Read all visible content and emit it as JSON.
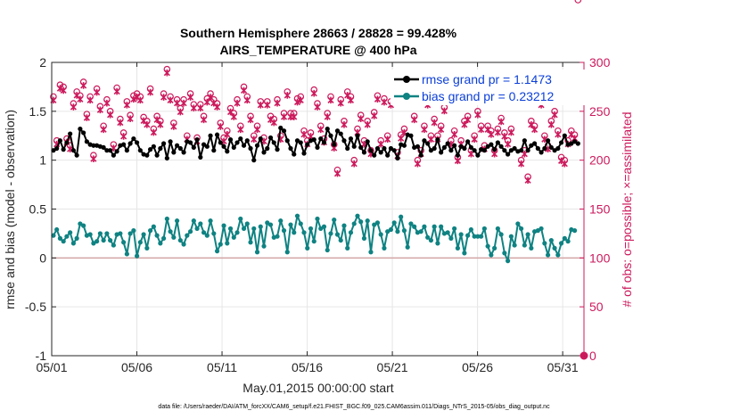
{
  "chart_data": {
    "type": "line",
    "title": "Southern Hemisphere 28663 / 28828 = 99.428%",
    "subtitle": "AIRS_TEMPERATURE @ 400 hPa",
    "xlabel": "May.01,2015 00:00:00 start",
    "ylabel_left": "rmse and bias (model - observation)",
    "ylabel_right": "# of obs: o=possible; ×=assimilated",
    "footer": "data file: /Users/raeder/DAI/ATM_forcXX/CAM6_setup/f.e21.FHIST_BGC.f09_025.CAM6assim.011/Diags_NTrS_2015-05/obs_diag_output.nc",
    "x_ticks": [
      "05/01",
      "05/06",
      "05/11",
      "05/16",
      "05/21",
      "05/26",
      "05/31"
    ],
    "x_tick_days": [
      0,
      5,
      10,
      15,
      20,
      25,
      30
    ],
    "xlim_days": [
      0,
      31.25
    ],
    "y_left_ticks": [
      "-1",
      "-0.5",
      "0",
      "0.5",
      "1",
      "1.5",
      "2"
    ],
    "y_left_lim": [
      -1,
      2
    ],
    "y_right_ticks": [
      "0",
      "50",
      "100",
      "150",
      "200",
      "250",
      "300"
    ],
    "y_right_lim": [
      0,
      300
    ],
    "grid": true,
    "legend_position": "top-right",
    "colors": {
      "rmse": "#000000",
      "bias": "#0f8282",
      "obs": "#cc1a5c",
      "zero_line": "#d4a5a5",
      "grid": "#e6e6e6"
    },
    "series": [
      {
        "name": "rmse grand pr = 1.1473",
        "axis": "left",
        "values": [
          1.1,
          1.12,
          1.2,
          1.11,
          1.18,
          1.27,
          1.1,
          1.05,
          1.32,
          1.28,
          1.19,
          1.16,
          1.15,
          1.15,
          1.14,
          1.13,
          1.1,
          1.1,
          1.05,
          1.09,
          1.15,
          1.16,
          1.1,
          1.17,
          1.22,
          1.18,
          1.1,
          1.06,
          1.05,
          1.11,
          1.14,
          1.05,
          1.12,
          1.17,
          1.02,
          1.19,
          1.08,
          1.15,
          1.12,
          1.08,
          1.19,
          1.18,
          1.13,
          1.21,
          1.03,
          1.16,
          1.14,
          1.25,
          1.1,
          1.26,
          1.18,
          1.14,
          1.09,
          1.21,
          1.13,
          1.18,
          1.22,
          1.15,
          1.2,
          1.12,
          1.0,
          1.15,
          1.22,
          1.08,
          1.12,
          1.23,
          1.18,
          1.11,
          1.33,
          1.3,
          1.2,
          1.12,
          1.06,
          1.2,
          1.18,
          1.07,
          1.16,
          1.2,
          1.21,
          1.13,
          1.22,
          1.18,
          1.32,
          1.25,
          1.16,
          1.3,
          1.27,
          1.2,
          1.12,
          1.22,
          1.14,
          1.25,
          1.13,
          1.08,
          1.19,
          1.1,
          1.05,
          1.12,
          1.08,
          1.12,
          1.05,
          1.12,
          1.1,
          1.02,
          1.16,
          1.15,
          1.26,
          1.25,
          1.13,
          1.14,
          1.05,
          1.2,
          1.17,
          1.1,
          1.12,
          1.21,
          1.08,
          1.13,
          1.17,
          1.1,
          1.15,
          1.05,
          1.14,
          1.12,
          1.19,
          1.13,
          1.1,
          1.05,
          1.11,
          1.1,
          1.14,
          1.16,
          1.11,
          1.18,
          1.14,
          1.1,
          1.06,
          1.1,
          1.12,
          1.09,
          1.1,
          1.2,
          1.1,
          1.15,
          1.17,
          1.12,
          1.08,
          1.12,
          1.2,
          1.13,
          1.1,
          1.12,
          1.18,
          1.25,
          1.16,
          1.17,
          1.19,
          1.17
        ]
      },
      {
        "name": "bias grand pr = 0.23212",
        "axis": "left",
        "values": [
          0.23,
          0.29,
          0.2,
          0.17,
          0.22,
          0.26,
          0.15,
          0.2,
          0.35,
          0.33,
          0.23,
          0.24,
          0.15,
          0.17,
          0.25,
          0.18,
          0.25,
          0.18,
          0.13,
          0.24,
          0.25,
          0.16,
          0.04,
          0.25,
          0.28,
          0.02,
          0.16,
          0.24,
          0.1,
          0.28,
          0.32,
          0.23,
          0.15,
          0.2,
          0.4,
          0.27,
          0.21,
          0.38,
          0.18,
          0.14,
          0.23,
          0.27,
          0.38,
          0.3,
          0.35,
          0.26,
          0.23,
          0.38,
          0.25,
          0.07,
          0.14,
          0.33,
          0.15,
          0.3,
          0.21,
          0.26,
          0.4,
          0.3,
          0.35,
          0.16,
          0.3,
          0.06,
          0.32,
          0.12,
          0.36,
          0.34,
          0.21,
          0.22,
          0.38,
          0.28,
          0.06,
          0.34,
          0.26,
          0.43,
          0.35,
          0.26,
          0.1,
          0.3,
          0.17,
          0.4,
          0.3,
          0.32,
          0.08,
          0.25,
          0.39,
          0.24,
          0.18,
          0.33,
          0.1,
          0.26,
          0.35,
          0.43,
          0.37,
          0.2,
          0.38,
          0.06,
          0.34,
          0.36,
          0.24,
          0.1,
          0.27,
          0.29,
          0.36,
          0.27,
          0.42,
          0.28,
          0.11,
          0.35,
          0.32,
          0.26,
          0.27,
          0.32,
          0.21,
          0.18,
          0.32,
          0.15,
          0.32,
          0.25,
          0.26,
          0.2,
          0.3,
          0.1,
          0.24,
          0.05,
          0.23,
          0.29,
          0.22,
          0.22,
          0.22,
          0.3,
          0.12,
          0.03,
          0.1,
          0.3,
          0.24,
          0.05,
          -0.03,
          0.22,
          0.13,
          0.35,
          0.3,
          0.13,
          0.24,
          0.1,
          0.27,
          0.28,
          0.3,
          0.15,
          0.03,
          0.18,
          0.1,
          0.03,
          0.15,
          0.2,
          0.17,
          0.29,
          0.28
        ]
      },
      {
        "name": "# of obs possible",
        "axis": "right",
        "marker": "o",
        "values": [
          265,
          220,
          277,
          275,
          222,
          215,
          258,
          270,
          266,
          280,
          247,
          265,
          205,
          273,
          255,
          235,
          262,
          250,
          216,
          274,
          242,
          228,
          260,
          246,
          266,
          268,
          265,
          244,
          240,
          273,
          232,
          245,
          240,
          268,
          293,
          265,
          238,
          262,
          253,
          262,
          225,
          268,
          257,
          223,
          257,
          245,
          263,
          268,
          262,
          258,
          238,
          223,
          230,
          253,
          248,
          262,
          235,
          275,
          265,
          245,
          225,
          235,
          260,
          223,
          260,
          245,
          242,
          262,
          225,
          248,
          270,
          248,
          248,
          263,
          265,
          230,
          220,
          228,
          272,
          258,
          235,
          222,
          248,
          265,
          216,
          190,
          262,
          240,
          270,
          265,
          200,
          232,
          246,
          220,
          240,
          210,
          249,
          266,
          220,
          263,
          225,
          260,
          266,
          208,
          226,
          232,
          265,
          265,
          245,
          200,
          210,
          235,
          260,
          225,
          242,
          225,
          235,
          254,
          265,
          220,
          230,
          203,
          220,
          240,
          245,
          210,
          225,
          250,
          235,
          215,
          235,
          230,
          210,
          232,
          243,
          228,
          220,
          232,
          265,
          265,
          200,
          210,
          183,
          240,
          235,
          265,
          260,
          225,
          215,
          240,
          250,
          230,
          203,
          200,
          220,
          230,
          226
        ]
      },
      {
        "name": "# of obs assimilated",
        "axis": "right",
        "marker": "x",
        "values": [
          265,
          220,
          277,
          275,
          222,
          215,
          258,
          270,
          266,
          280,
          247,
          265,
          205,
          273,
          255,
          235,
          262,
          250,
          216,
          274,
          242,
          228,
          260,
          246,
          266,
          268,
          265,
          244,
          240,
          273,
          232,
          245,
          240,
          268,
          293,
          265,
          238,
          262,
          253,
          262,
          225,
          268,
          257,
          223,
          257,
          245,
          263,
          268,
          262,
          258,
          238,
          223,
          230,
          253,
          248,
          262,
          235,
          275,
          265,
          245,
          225,
          235,
          260,
          223,
          260,
          245,
          242,
          262,
          225,
          248,
          270,
          248,
          248,
          263,
          265,
          230,
          220,
          228,
          272,
          258,
          235,
          222,
          248,
          265,
          216,
          190,
          262,
          240,
          270,
          265,
          200,
          232,
          246,
          220,
          240,
          210,
          249,
          266,
          220,
          263,
          225,
          260,
          266,
          208,
          226,
          232,
          265,
          265,
          245,
          200,
          210,
          235,
          260,
          225,
          242,
          225,
          235,
          254,
          265,
          220,
          230,
          203,
          220,
          240,
          245,
          210,
          225,
          250,
          235,
          215,
          235,
          230,
          210,
          232,
          243,
          228,
          220,
          232,
          265,
          265,
          200,
          210,
          183,
          240,
          235,
          265,
          260,
          225,
          215,
          240,
          250,
          230,
          203,
          200,
          220,
          230,
          226
        ]
      }
    ],
    "annotations": [
      {
        "label": "rmse grand pr = 1.1473"
      },
      {
        "label": "bias grand pr = 0.23212"
      }
    ]
  }
}
